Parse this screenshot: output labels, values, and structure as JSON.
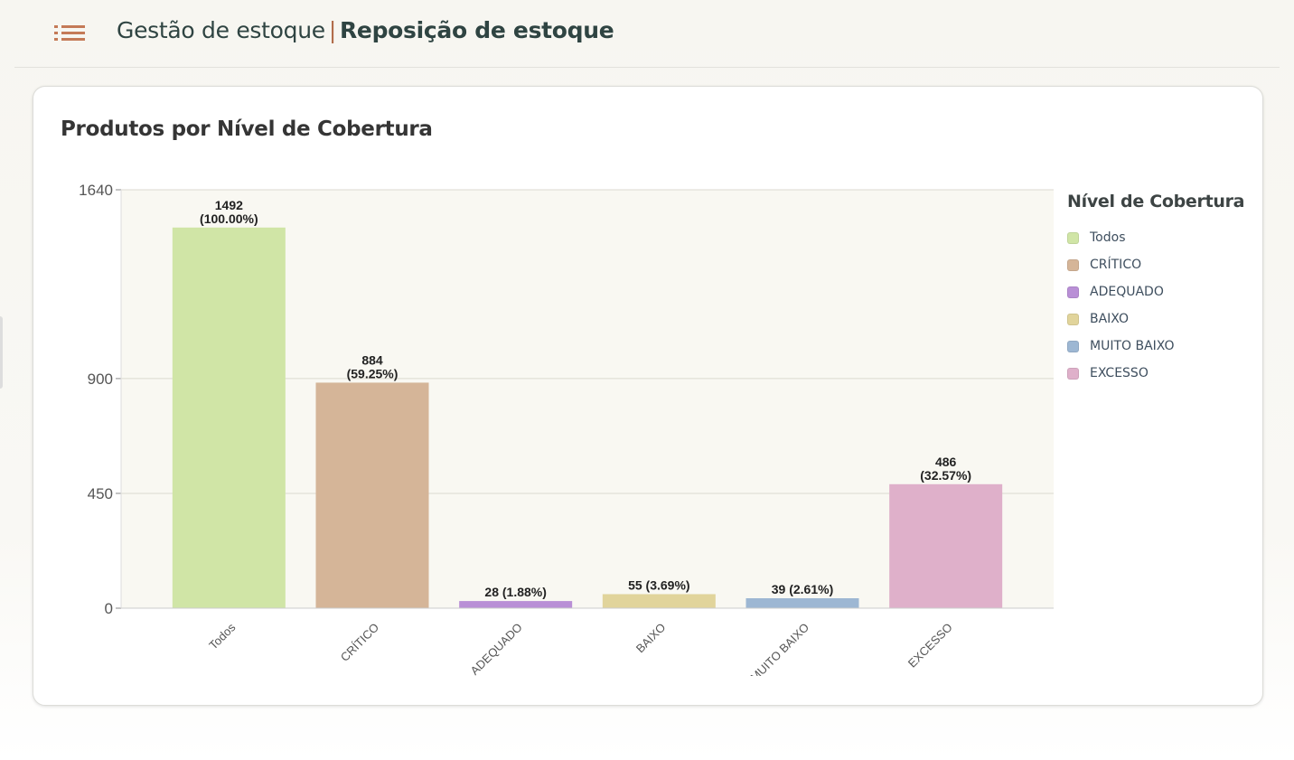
{
  "header": {
    "menu_icon": "list-icon",
    "title_section": "Gestão de estoque",
    "separator": "|",
    "title_page": "Reposição de estoque",
    "accent_color": "#c47a57"
  },
  "card": {
    "title": "Produtos por Nível de Cobertura"
  },
  "chart_data": {
    "type": "bar",
    "title": "Produtos por Nível de Cobertura",
    "xlabel": "",
    "ylabel": "",
    "ylim": [
      0,
      1640
    ],
    "yticks": [
      0,
      450,
      900,
      1640
    ],
    "grid": true,
    "categories": [
      "Todos",
      "CRÍTICO",
      "ADEQUADO",
      "BAIXO",
      "MUITO BAIXO",
      "EXCESSO"
    ],
    "values": [
      1492,
      884,
      28,
      55,
      39,
      486
    ],
    "data_labels": [
      "1492\n(100.00%)",
      "884\n(59.25%)",
      "28 (1.88%)",
      "55 (3.69%)",
      "39 (2.61%)",
      "486\n(32.57%)"
    ],
    "colors": [
      "#d0e5a6",
      "#d5b598",
      "#b98fd6",
      "#e1d49b",
      "#9db7d3",
      "#dfb0ca"
    ],
    "legend": {
      "title": "Nível de Cobertura",
      "position": "right",
      "items": [
        "Todos",
        "CRÍTICO",
        "ADEQUADO",
        "BAIXO",
        "MUITO BAIXO",
        "EXCESSO"
      ]
    }
  }
}
